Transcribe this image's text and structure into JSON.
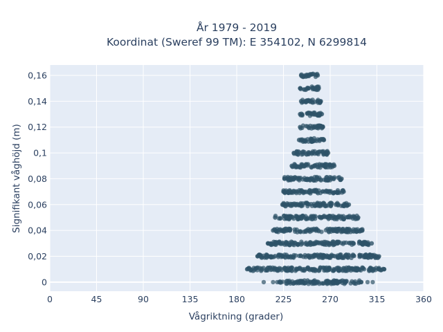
{
  "chart_data": {
    "type": "scatter",
    "title": "År 1979 - 2019",
    "subtitle": "Koordinat (Sweref 99 TM): E 354102, N 6299814",
    "xlabel": "Vågriktning (grader)",
    "ylabel": "Signifikant våghöjd (m)",
    "xlim": [
      0,
      360
    ],
    "ylim": [
      -0.007,
      0.168
    ],
    "x_ticks": [
      0,
      45,
      90,
      135,
      180,
      225,
      270,
      315,
      360
    ],
    "x_tick_labels": [
      "0",
      "45",
      "90",
      "135",
      "180",
      "225",
      "270",
      "315",
      "360"
    ],
    "y_ticks": [
      0,
      0.02,
      0.04,
      0.06,
      0.08,
      0.1,
      0.12,
      0.14,
      0.16
    ],
    "y_tick_labels": [
      "0",
      "0,02",
      "0,04",
      "0,06",
      "0,08",
      "0,1",
      "0,12",
      "0,14",
      "0,16"
    ],
    "grid": true,
    "marker_color": "#2e5368",
    "plot_background": "#e5ecf6",
    "grid_color": "#ffffff",
    "bands": [
      {
        "y": 0.0,
        "x_min": 221,
        "x_max": 300,
        "outliers": [
          206,
          215,
          219,
          306,
          311
        ]
      },
      {
        "y": 0.01,
        "x_min": 190,
        "x_max": 322,
        "outliers": [
          322
        ]
      },
      {
        "y": 0.02,
        "x_min": 200,
        "x_max": 317,
        "outliers": []
      },
      {
        "y": 0.03,
        "x_min": 210,
        "x_max": 310,
        "outliers": []
      },
      {
        "y": 0.04,
        "x_min": 215,
        "x_max": 301,
        "outliers": []
      },
      {
        "y": 0.05,
        "x_min": 217,
        "x_max": 297,
        "outliers": []
      },
      {
        "y": 0.06,
        "x_min": 224,
        "x_max": 288,
        "outliers": []
      },
      {
        "y": 0.07,
        "x_min": 225,
        "x_max": 283,
        "outliers": []
      },
      {
        "y": 0.08,
        "x_min": 226,
        "x_max": 281,
        "outliers": []
      },
      {
        "y": 0.09,
        "x_min": 233,
        "x_max": 274,
        "outliers": []
      },
      {
        "y": 0.1,
        "x_min": 235,
        "x_max": 268,
        "outliers": []
      },
      {
        "y": 0.11,
        "x_min": 240,
        "x_max": 264,
        "outliers": []
      },
      {
        "y": 0.12,
        "x_min": 241,
        "x_max": 263,
        "outliers": []
      },
      {
        "y": 0.13,
        "x_min": 241,
        "x_max": 262,
        "outliers": []
      },
      {
        "y": 0.14,
        "x_min": 242,
        "x_max": 261,
        "outliers": []
      },
      {
        "y": 0.15,
        "x_min": 241,
        "x_max": 259,
        "outliers": []
      },
      {
        "y": 0.16,
        "x_min": 242,
        "x_max": 258,
        "outliers": []
      }
    ]
  }
}
